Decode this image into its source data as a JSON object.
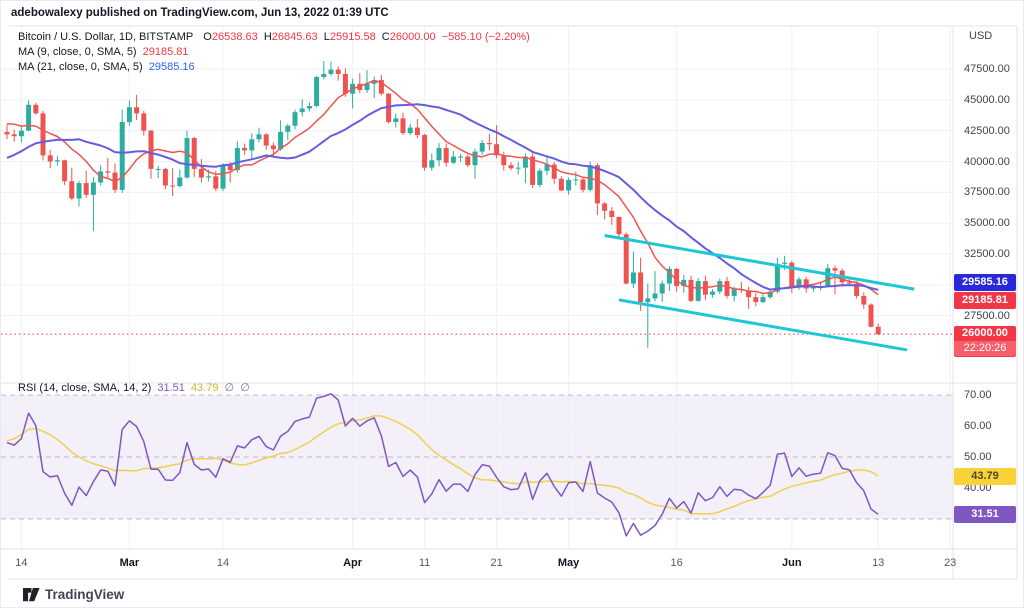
{
  "attribution": "adebowalexy published on TradingView.com, Jun 13, 2022 01:39 UTC",
  "watermark_text": "TradingView",
  "symbol_legend": {
    "title": "Bitcoin / U.S. Dollar, 1D, BITSTAMP",
    "o_label": "O",
    "o": "26538.63",
    "h_label": "H",
    "h": "26845.63",
    "l_label": "L",
    "l": "25915.58",
    "c_label": "C",
    "c": "26000.00",
    "change": "−585.10 (−2.20%)",
    "ma_fast_label": "MA (9, close, 0, SMA, 5)",
    "ma_fast_value": "29185.81",
    "ma_slow_label": "MA (21, close, 0, SMA, 5)",
    "ma_slow_value": "29585.16"
  },
  "rsi_legend": {
    "label": "RSI (14, close, SMA, 14, 2)",
    "rsi_value": "31.51",
    "ma_value": "43.79",
    "empty1": "∅",
    "empty2": "∅"
  },
  "price_axis": {
    "unit": "USD",
    "labels": [
      "47500.00",
      "45000.00",
      "42500.00",
      "40000.00",
      "37500.00",
      "35000.00",
      "32500.00",
      "27500.00"
    ],
    "ma_slow_badge": "29585.16",
    "ma_fast_badge": "29185.81",
    "last_price_badge": "26000.00",
    "countdown": "22:20:26"
  },
  "rsi_axis": {
    "labels": [
      "70.00",
      "60.00",
      "50.00",
      "40.00",
      "30.00"
    ],
    "rsi_badge": "31.51",
    "ma_badge": "43.79"
  },
  "time_axis": {
    "ticks": [
      {
        "label": "14",
        "bar": 2,
        "month": false
      },
      {
        "label": "Mar",
        "bar": 17,
        "month": true
      },
      {
        "label": "14",
        "bar": 30,
        "month": false
      },
      {
        "label": "Apr",
        "bar": 48,
        "month": true
      },
      {
        "label": "11",
        "bar": 58,
        "month": false
      },
      {
        "label": "21",
        "bar": 68,
        "month": false
      },
      {
        "label": "May",
        "bar": 78,
        "month": true
      },
      {
        "label": "16",
        "bar": 93,
        "month": false
      },
      {
        "label": "Jun",
        "bar": 109,
        "month": true
      },
      {
        "label": "13",
        "bar": 121,
        "month": false
      },
      {
        "label": "23",
        "bar": 131,
        "month": false
      }
    ]
  },
  "colors": {
    "up": "#2bae9f",
    "down": "#ef5350",
    "ma_fast": "#f05452",
    "ma_slow": "#655ce0",
    "trendline": "#1fc7d4",
    "rsi_line": "#7e57c2",
    "rsi_ma_line": "#efd04f",
    "rsi_band_fill": "rgba(126,87,194,0.09)",
    "grid": "#eef0f5",
    "frame": "#e0e3eb",
    "dashed": "#8c8f96",
    "price_line": "#f23645"
  },
  "chart_data": {
    "type": "candlestick",
    "interval": "1D",
    "price_axis_ticks": [
      47500,
      45000,
      42500,
      40000,
      37500,
      35000,
      32500,
      30000,
      27500
    ],
    "rsi_solid_ticks": [
      60,
      40
    ],
    "rsi_dashed_levels": [
      70,
      50,
      30
    ],
    "price_line_level": 26000,
    "indicators": {
      "ma_fast": {
        "type": "SMA",
        "length": 9,
        "last": 29185.81
      },
      "ma_slow": {
        "type": "SMA",
        "length": 21,
        "last": 29585.16
      },
      "rsi": {
        "length": 14,
        "smoothing": "SMA",
        "smoothing_length": 14,
        "last": 31.51,
        "ma_last": 43.79
      }
    },
    "trendlines": [
      {
        "x1_bar": 83,
        "price1": 34000,
        "x2_bar": 126,
        "price2": 29650
      },
      {
        "x1_bar": 85,
        "price1": 28780,
        "x2_bar": 125,
        "price2": 24720
      }
    ],
    "first_open": 42400,
    "warmup_closes": [
      41700,
      41900,
      41800,
      42700,
      43900,
      43100,
      43200,
      43000,
      42600,
      41700,
      40700,
      36500,
      35100,
      36300,
      36700,
      37000,
      36200,
      37200,
      37800,
      38200,
      37900,
      38500,
      38700,
      36900,
      37300,
      41500,
      41400,
      42400,
      43900,
      44100,
      44400,
      43500,
      42400,
      42250,
      42400
    ],
    "candles_hlc": [
      [
        43000,
        41800,
        42200
      ],
      [
        42600,
        41600,
        42050
      ],
      [
        42850,
        41550,
        42500
      ],
      [
        44950,
        42450,
        44600
      ],
      [
        44750,
        43800,
        43900
      ],
      [
        44100,
        40100,
        40500
      ],
      [
        40950,
        39450,
        40000
      ],
      [
        40450,
        39650,
        40100
      ],
      [
        40150,
        38100,
        38400
      ],
      [
        39500,
        36850,
        37000
      ],
      [
        38450,
        36350,
        38250
      ],
      [
        39250,
        37050,
        37300
      ],
      [
        38750,
        34350,
        38300
      ],
      [
        39700,
        38050,
        39200
      ],
      [
        40300,
        38600,
        39100
      ],
      [
        39850,
        37450,
        37700
      ],
      [
        44200,
        37450,
        43200
      ],
      [
        44950,
        42900,
        44400
      ],
      [
        45400,
        43350,
        43900
      ],
      [
        44100,
        42100,
        42500
      ],
      [
        42550,
        38600,
        39400
      ],
      [
        39650,
        38650,
        39400
      ],
      [
        39500,
        37750,
        38050
      ],
      [
        39450,
        37200,
        38000
      ],
      [
        39350,
        37900,
        38700
      ],
      [
        42500,
        38600,
        41900
      ],
      [
        42000,
        38750,
        39400
      ],
      [
        40200,
        38300,
        38700
      ],
      [
        39350,
        38400,
        38800
      ],
      [
        39250,
        37600,
        37800
      ],
      [
        39850,
        37600,
        39700
      ],
      [
        39950,
        38300,
        39300
      ],
      [
        41650,
        39100,
        41100
      ],
      [
        41450,
        40550,
        40900
      ],
      [
        42300,
        40250,
        41800
      ],
      [
        42750,
        41550,
        42200
      ],
      [
        42300,
        40950,
        41300
      ],
      [
        41550,
        40450,
        41000
      ],
      [
        43350,
        40850,
        42400
      ],
      [
        43050,
        41750,
        42900
      ],
      [
        44200,
        42600,
        44000
      ],
      [
        45050,
        43650,
        44300
      ],
      [
        44800,
        44050,
        44500
      ],
      [
        46950,
        44400,
        46850
      ],
      [
        48150,
        46650,
        47100
      ],
      [
        48100,
        46950,
        47450
      ],
      [
        47700,
        46550,
        47100
      ],
      [
        47550,
        45250,
        45500
      ],
      [
        46700,
        44300,
        46300
      ],
      [
        47150,
        45550,
        45800
      ],
      [
        47400,
        45550,
        46300
      ],
      [
        46900,
        45150,
        46600
      ],
      [
        47000,
        45350,
        45500
      ],
      [
        45550,
        43100,
        43200
      ],
      [
        43900,
        42750,
        43500
      ],
      [
        43950,
        42150,
        42300
      ],
      [
        43050,
        42150,
        42750
      ],
      [
        43450,
        41900,
        42150
      ],
      [
        42250,
        39250,
        39500
      ],
      [
        40650,
        39250,
        40100
      ],
      [
        41500,
        39600,
        41100
      ],
      [
        41450,
        39600,
        39900
      ],
      [
        40850,
        39800,
        40400
      ],
      [
        40650,
        39950,
        40400
      ],
      [
        40550,
        39550,
        39700
      ],
      [
        41050,
        38600,
        40800
      ],
      [
        41750,
        40550,
        41500
      ],
      [
        42250,
        40900,
        41400
      ],
      [
        42950,
        40250,
        40500
      ],
      [
        40800,
        39250,
        39700
      ],
      [
        39950,
        39300,
        39450
      ],
      [
        39950,
        38950,
        39500
      ],
      [
        40650,
        38250,
        40400
      ],
      [
        40800,
        37850,
        38100
      ],
      [
        39450,
        37900,
        39250
      ],
      [
        40350,
        38900,
        39750
      ],
      [
        39950,
        38200,
        38600
      ],
      [
        38800,
        37600,
        37650
      ],
      [
        38700,
        37300,
        38500
      ],
      [
        39200,
        38050,
        38550
      ],
      [
        38650,
        37500,
        37700
      ],
      [
        40000,
        37550,
        39700
      ],
      [
        39850,
        35650,
        36600
      ],
      [
        36700,
        35300,
        36000
      ],
      [
        36300,
        34850,
        35500
      ],
      [
        35550,
        33750,
        34100
      ],
      [
        34250,
        30050,
        30100
      ],
      [
        32700,
        29750,
        31000
      ],
      [
        32200,
        27900,
        28600
      ],
      [
        30100,
        24900,
        28900
      ],
      [
        31100,
        28650,
        29300
      ],
      [
        30350,
        28600,
        30100
      ],
      [
        31500,
        29500,
        31300
      ],
      [
        31350,
        29450,
        29900
      ],
      [
        30800,
        29350,
        30400
      ],
      [
        30750,
        28600,
        28700
      ],
      [
        30550,
        28650,
        30300
      ],
      [
        30750,
        28750,
        29200
      ],
      [
        29650,
        28950,
        29450
      ],
      [
        30500,
        29250,
        30300
      ],
      [
        30650,
        28900,
        29100
      ],
      [
        29850,
        28650,
        29650
      ],
      [
        30250,
        29350,
        29550
      ],
      [
        29850,
        28050,
        29000
      ],
      [
        29350,
        28250,
        28600
      ],
      [
        29250,
        28550,
        29000
      ],
      [
        29600,
        28850,
        29450
      ],
      [
        32200,
        29300,
        31700
      ],
      [
        32350,
        31200,
        31800
      ],
      [
        31950,
        29350,
        29800
      ],
      [
        30650,
        29600,
        30450
      ],
      [
        30650,
        29350,
        29700
      ],
      [
        29950,
        29450,
        29850
      ],
      [
        30150,
        29550,
        29900
      ],
      [
        31700,
        29900,
        31350
      ],
      [
        31550,
        29250,
        31150
      ],
      [
        31300,
        29850,
        30200
      ],
      [
        30650,
        29950,
        30100
      ],
      [
        30300,
        28900,
        29100
      ],
      [
        29400,
        28050,
        28400
      ],
      [
        28500,
        26550,
        26600
      ],
      [
        26845.63,
        25915.58,
        26000
      ]
    ],
    "last_candle_ohlc": [
      26538.63,
      26845.63,
      25915.58,
      26000.0
    ]
  }
}
